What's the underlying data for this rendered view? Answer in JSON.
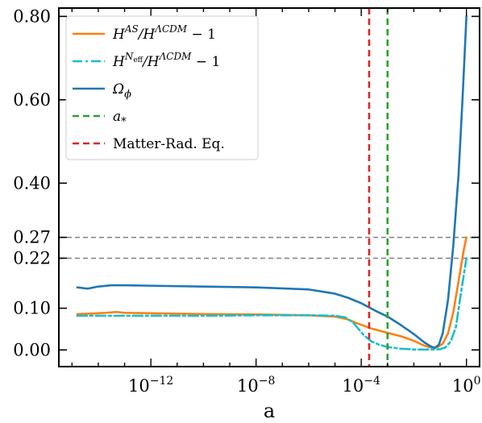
{
  "chart_data": {
    "type": "line",
    "xlabel": "a",
    "ylabel": "",
    "xscale": "log",
    "xlim_exp": [
      -15.5,
      0.5
    ],
    "ylim": [
      -0.04,
      0.82
    ],
    "x_ticks": [
      {
        "exp": -12,
        "label": "10",
        "sup": "−12"
      },
      {
        "exp": -8,
        "label": "10",
        "sup": "−8"
      },
      {
        "exp": -4,
        "label": "10",
        "sup": "−4"
      },
      {
        "exp": 0,
        "label": "10",
        "sup": "0"
      }
    ],
    "y_ticks": [
      0.0,
      0.1,
      0.22,
      0.27,
      0.4,
      0.6,
      0.8
    ],
    "y_tick_labels": [
      "0.00",
      "0.10",
      "0.22",
      "0.27",
      "0.40",
      "0.60",
      "0.80"
    ],
    "hlines": [
      {
        "y": 0.27,
        "color": "#808080",
        "style": "dashed"
      },
      {
        "y": 0.22,
        "color": "#808080",
        "style": "dashed"
      }
    ],
    "vlines": [
      {
        "x_exp": -3.7,
        "name": "Matter-Rad. Eq.",
        "color": "#d62728",
        "style": "dashed"
      },
      {
        "x_exp": -3.0,
        "name": "a_*",
        "color": "#2ca02c",
        "style": "dashed"
      }
    ],
    "series": [
      {
        "key": "as",
        "color": "#ff7f0e",
        "style": "solid",
        "points": [
          [
            -14.8,
            0.086
          ],
          [
            -14.3,
            0.087
          ],
          [
            -13.7,
            0.089
          ],
          [
            -13.3,
            0.091
          ],
          [
            -13,
            0.089
          ],
          [
            -12,
            0.088
          ],
          [
            -10,
            0.086
          ],
          [
            -8,
            0.085
          ],
          [
            -6,
            0.083
          ],
          [
            -5,
            0.08
          ],
          [
            -4.5,
            0.073
          ],
          [
            -4.2,
            0.065
          ],
          [
            -3.9,
            0.058
          ],
          [
            -3.6,
            0.051
          ],
          [
            -3.3,
            0.046
          ],
          [
            -3,
            0.041
          ],
          [
            -2.5,
            0.033
          ],
          [
            -2,
            0.022
          ],
          [
            -1.6,
            0.01
          ],
          [
            -1.3,
            0.005
          ],
          [
            -1.1,
            0.007
          ],
          [
            -0.9,
            0.015
          ],
          [
            -0.7,
            0.04
          ],
          [
            -0.5,
            0.09
          ],
          [
            -0.3,
            0.165
          ],
          [
            -0.1,
            0.24
          ],
          [
            0,
            0.27
          ]
        ]
      },
      {
        "key": "neff",
        "color": "#17becf",
        "style": "dashdot",
        "points": [
          [
            -14.8,
            0.082
          ],
          [
            -13,
            0.082
          ],
          [
            -12,
            0.082
          ],
          [
            -10,
            0.082
          ],
          [
            -8,
            0.083
          ],
          [
            -6,
            0.083
          ],
          [
            -5,
            0.082
          ],
          [
            -4.6,
            0.078
          ],
          [
            -4.3,
            0.065
          ],
          [
            -4.1,
            0.05
          ],
          [
            -3.9,
            0.035
          ],
          [
            -3.6,
            0.02
          ],
          [
            -3.3,
            0.012
          ],
          [
            -3,
            0.007
          ],
          [
            -2.5,
            0.003
          ],
          [
            -2,
            0.001
          ],
          [
            -1.5,
            0.001
          ],
          [
            -1.2,
            0.001
          ],
          [
            -1,
            0.002
          ],
          [
            -0.8,
            0.006
          ],
          [
            -0.6,
            0.02
          ],
          [
            -0.4,
            0.055
          ],
          [
            -0.2,
            0.14
          ],
          [
            0,
            0.22
          ]
        ]
      },
      {
        "key": "omega",
        "color": "#1f77b4",
        "style": "solid",
        "points": [
          [
            -14.8,
            0.15
          ],
          [
            -14.4,
            0.147
          ],
          [
            -14,
            0.152
          ],
          [
            -13.5,
            0.155
          ],
          [
            -13,
            0.155
          ],
          [
            -12,
            0.154
          ],
          [
            -10,
            0.152
          ],
          [
            -8,
            0.15
          ],
          [
            -6,
            0.145
          ],
          [
            -5,
            0.135
          ],
          [
            -4.5,
            0.125
          ],
          [
            -4,
            0.112
          ],
          [
            -3.7,
            0.102
          ],
          [
            -3.4,
            0.092
          ],
          [
            -3,
            0.08
          ],
          [
            -2.5,
            0.06
          ],
          [
            -2,
            0.038
          ],
          [
            -1.6,
            0.018
          ],
          [
            -1.35,
            0.008
          ],
          [
            -1.2,
            0.005
          ],
          [
            -1.05,
            0.012
          ],
          [
            -0.9,
            0.04
          ],
          [
            -0.7,
            0.12
          ],
          [
            -0.5,
            0.25
          ],
          [
            -0.3,
            0.42
          ],
          [
            -0.15,
            0.6
          ],
          [
            0,
            0.8
          ]
        ]
      }
    ],
    "legend": {
      "placement": "top-left",
      "entries": [
        {
          "key": "as",
          "prefix": "H",
          "prefix_sup": "AS",
          "mid": "/H",
          "mid_sup": "ΛCDM",
          "suffix": " − 1",
          "color": "#ff7f0e",
          "style": "solid"
        },
        {
          "key": "neff",
          "prefix": "H",
          "prefix_sup": "N",
          "prefix_sup2": "eff",
          "mid": "/H",
          "mid_sup": "ΛCDM",
          "suffix": " − 1",
          "color": "#17becf",
          "style": "dashdot"
        },
        {
          "key": "omega",
          "prefix": "Ω",
          "prefix_sub": "ϕ",
          "color": "#1f77b4",
          "style": "solid"
        },
        {
          "key": "astar",
          "prefix": "a",
          "prefix_sub": "*",
          "color": "#2ca02c",
          "style": "dashed"
        },
        {
          "key": "mre",
          "text": "Matter-Rad. Eq.",
          "color": "#d62728",
          "style": "dashed"
        }
      ]
    }
  }
}
